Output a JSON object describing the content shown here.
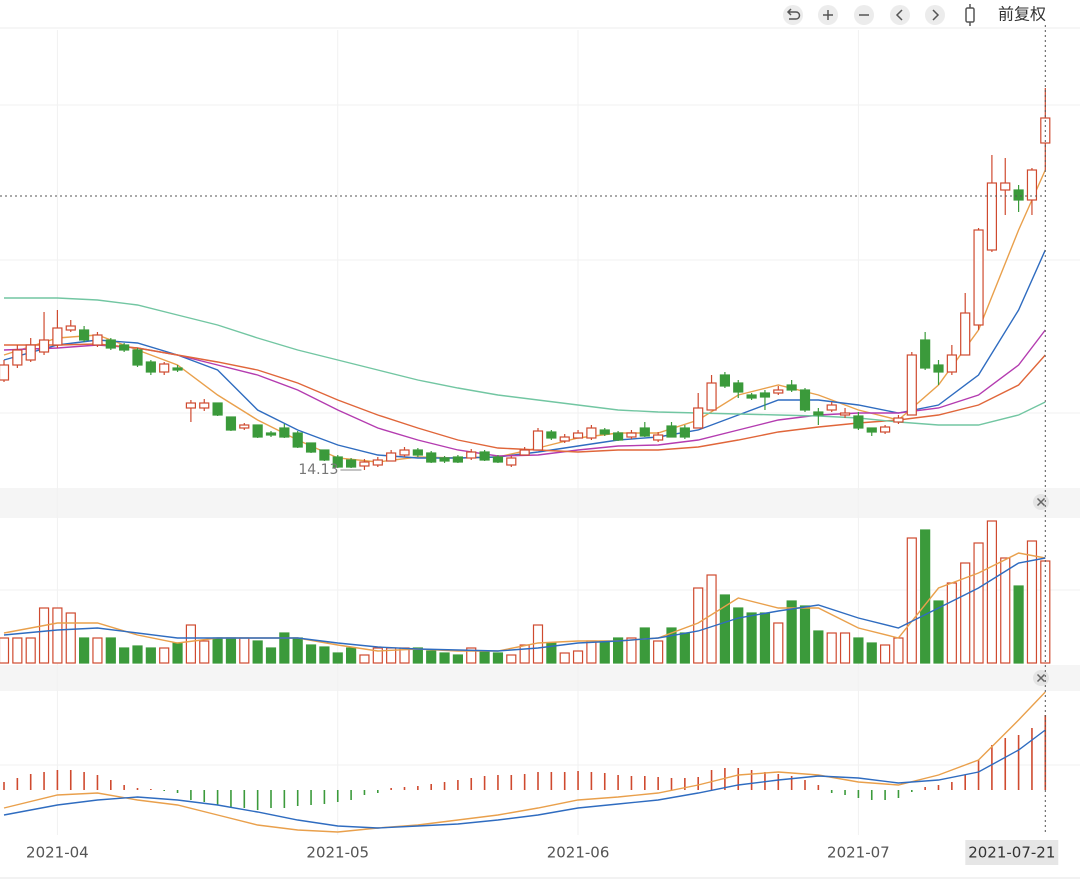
{
  "toolbar": {
    "adjust": "前复权"
  },
  "chart_data": [
    {
      "type": "candlestick",
      "up_color": "#cf4a2f",
      "down_color": "#3b9a3b",
      "ylim": [
        13.83,
        22.93
      ],
      "ohlc": [
        [
          15.93,
          16.33,
          15.89,
          16.23
        ],
        [
          16.23,
          16.63,
          16.17,
          16.53
        ],
        [
          16.33,
          16.77,
          16.29,
          16.63
        ],
        [
          16.49,
          17.29,
          16.43,
          16.73
        ],
        [
          16.63,
          17.33,
          16.57,
          16.97
        ],
        [
          16.93,
          17.13,
          16.89,
          17.01
        ],
        [
          16.93,
          17.01,
          16.69,
          16.73
        ],
        [
          16.63,
          16.89,
          16.59,
          16.83
        ],
        [
          16.73,
          16.77,
          16.53,
          16.57
        ],
        [
          16.63,
          16.67,
          16.49,
          16.53
        ],
        [
          16.53,
          16.57,
          16.19,
          16.23
        ],
        [
          16.29,
          16.33,
          16.03,
          16.09
        ],
        [
          16.09,
          16.29,
          16.03,
          16.25
        ],
        [
          16.17,
          16.23,
          16.09,
          16.13
        ],
        [
          15.37,
          15.53,
          15.09,
          15.47
        ],
        [
          15.37,
          15.55,
          15.31,
          15.47
        ],
        [
          15.47,
          15.47,
          15.21,
          15.23
        ],
        [
          15.19,
          15.19,
          14.91,
          14.93
        ],
        [
          14.97,
          15.07,
          14.93,
          15.03
        ],
        [
          15.03,
          15.03,
          14.77,
          14.79
        ],
        [
          14.87,
          14.91,
          14.79,
          14.83
        ],
        [
          14.97,
          15.05,
          14.77,
          14.79
        ],
        [
          14.87,
          14.91,
          14.57,
          14.59
        ],
        [
          14.67,
          14.67,
          14.47,
          14.49
        ],
        [
          14.53,
          14.53,
          14.31,
          14.33
        ],
        [
          14.39,
          14.43,
          14.17,
          14.19
        ],
        [
          14.33,
          14.37,
          14.17,
          14.19
        ],
        [
          14.21,
          14.35,
          14.13,
          14.29
        ],
        [
          14.23,
          14.39,
          14.19,
          14.33
        ],
        [
          14.31,
          14.53,
          14.31,
          14.47
        ],
        [
          14.43,
          14.59,
          14.39,
          14.53
        ],
        [
          14.53,
          14.57,
          14.39,
          14.43
        ],
        [
          14.47,
          14.51,
          14.27,
          14.29
        ],
        [
          14.37,
          14.41,
          14.27,
          14.31
        ],
        [
          14.39,
          14.43,
          14.27,
          14.29
        ],
        [
          14.37,
          14.55,
          14.33,
          14.49
        ],
        [
          14.49,
          14.53,
          14.31,
          14.33
        ],
        [
          14.39,
          14.43,
          14.27,
          14.29
        ],
        [
          14.23,
          14.41,
          14.19,
          14.37
        ],
        [
          14.43,
          14.59,
          14.43,
          14.53
        ],
        [
          14.53,
          14.97,
          14.53,
          14.91
        ],
        [
          14.89,
          14.93,
          14.73,
          14.77
        ],
        [
          14.71,
          14.85,
          14.67,
          14.79
        ],
        [
          14.77,
          14.93,
          14.77,
          14.87
        ],
        [
          14.77,
          15.03,
          14.73,
          14.97
        ],
        [
          14.93,
          14.97,
          14.81,
          14.85
        ],
        [
          14.87,
          14.91,
          14.71,
          14.73
        ],
        [
          14.79,
          14.93,
          14.75,
          14.87
        ],
        [
          14.97,
          15.09,
          14.79,
          14.81
        ],
        [
          14.73,
          14.89,
          14.69,
          14.83
        ],
        [
          15.01,
          15.09,
          14.79,
          14.79
        ],
        [
          14.97,
          15.03,
          14.75,
          14.79
        ],
        [
          14.97,
          15.67,
          14.97,
          15.37
        ],
        [
          15.33,
          16.03,
          15.33,
          15.87
        ],
        [
          16.03,
          16.09,
          15.77,
          15.81
        ],
        [
          15.87,
          15.93,
          15.57,
          15.69
        ],
        [
          15.63,
          15.67,
          15.53,
          15.57
        ],
        [
          15.67,
          15.73,
          15.33,
          15.59
        ],
        [
          15.67,
          15.81,
          15.63,
          15.73
        ],
        [
          15.83,
          15.93,
          15.69,
          15.73
        ],
        [
          15.73,
          15.77,
          15.29,
          15.33
        ],
        [
          15.29,
          15.37,
          15.03,
          15.23
        ],
        [
          15.33,
          15.49,
          15.29,
          15.43
        ],
        [
          15.23,
          15.37,
          15.17,
          15.27
        ],
        [
          15.21,
          15.29,
          14.93,
          14.97
        ],
        [
          14.97,
          14.97,
          14.81,
          14.89
        ],
        [
          14.89,
          15.03,
          14.85,
          14.99
        ],
        [
          15.09,
          15.23,
          15.05,
          15.17
        ],
        [
          15.23,
          16.49,
          15.23,
          16.43
        ],
        [
          16.73,
          16.89,
          16.13,
          16.17
        ],
        [
          16.23,
          16.33,
          15.83,
          16.09
        ],
        [
          16.09,
          16.63,
          16.03,
          16.43
        ],
        [
          16.43,
          17.67,
          16.43,
          17.27
        ],
        [
          17.03,
          18.97,
          16.93,
          18.93
        ],
        [
          18.53,
          20.43,
          18.49,
          19.87
        ],
        [
          19.73,
          20.37,
          19.23,
          19.87
        ],
        [
          19.73,
          19.83,
          19.29,
          19.53
        ],
        [
          19.53,
          20.17,
          19.23,
          20.13
        ],
        [
          20.67,
          21.77,
          20.13,
          21.17
        ]
      ],
      "lines": {
        "x": [
          0,
          4,
          7,
          10,
          13,
          16,
          19,
          22,
          25,
          28,
          31,
          34,
          37,
          40,
          43,
          46,
          49,
          52,
          55,
          58,
          61,
          64,
          67,
          70,
          73,
          76,
          78
        ],
        "series": [
          {
            "color": "#e9a04c",
            "values": [
              16.43,
              16.77,
              16.83,
              16.53,
              16.23,
              15.63,
              15.13,
              14.73,
              14.37,
              14.29,
              14.39,
              14.37,
              14.39,
              14.57,
              14.77,
              14.87,
              14.87,
              15.13,
              15.63,
              15.83,
              15.63,
              15.33,
              15.13,
              15.83,
              16.93,
              18.93,
              20.13
            ]
          },
          {
            "color": "#2f6cc0",
            "values": [
              16.33,
              16.63,
              16.73,
              16.67,
              16.43,
              16.13,
              15.33,
              14.93,
              14.63,
              14.43,
              14.37,
              14.37,
              14.39,
              14.49,
              14.61,
              14.73,
              14.79,
              14.93,
              15.23,
              15.53,
              15.53,
              15.43,
              15.27,
              15.43,
              16.03,
              17.33,
              18.53
            ]
          },
          {
            "color": "#b43cb0",
            "values": [
              16.53,
              16.57,
              16.63,
              16.57,
              16.43,
              16.23,
              16.03,
              15.73,
              15.33,
              14.97,
              14.73,
              14.53,
              14.41,
              14.43,
              14.53,
              14.61,
              14.63,
              14.73,
              14.93,
              15.13,
              15.23,
              15.27,
              15.27,
              15.37,
              15.63,
              16.23,
              16.93
            ]
          },
          {
            "color": "#e0663a",
            "values": [
              16.63,
              16.63,
              16.65,
              16.57,
              16.43,
              16.29,
              16.13,
              15.87,
              15.53,
              15.23,
              14.97,
              14.73,
              14.57,
              14.53,
              14.49,
              14.53,
              14.53,
              14.59,
              14.73,
              14.89,
              14.99,
              15.07,
              15.13,
              15.23,
              15.43,
              15.83,
              16.43
            ]
          },
          {
            "color": "#72c6a2",
            "values": [
              17.57,
              17.57,
              17.53,
              17.43,
              17.23,
              17.03,
              16.77,
              16.53,
              16.33,
              16.13,
              15.93,
              15.77,
              15.63,
              15.53,
              15.43,
              15.33,
              15.29,
              15.27,
              15.25,
              15.23,
              15.21,
              15.17,
              15.09,
              15.03,
              15.03,
              15.23,
              15.49
            ]
          }
        ]
      }
    },
    {
      "type": "volume",
      "ylim": [
        0,
        145
      ],
      "values": [
        25,
        25,
        25,
        55,
        55,
        50,
        25,
        25,
        25,
        15,
        17,
        15,
        15,
        20,
        38,
        22,
        25,
        25,
        25,
        22,
        15,
        30,
        25,
        18,
        16,
        10,
        15,
        8,
        15,
        15,
        15,
        15,
        12,
        10,
        8,
        15,
        12,
        10,
        8,
        18,
        38,
        20,
        10,
        12,
        22,
        22,
        25,
        25,
        35,
        22,
        35,
        30,
        75,
        88,
        68,
        55,
        50,
        50,
        40,
        62,
        57,
        32,
        30,
        30,
        25,
        20,
        18,
        25,
        125,
        133,
        62,
        80,
        100,
        120,
        142,
        105,
        77,
        122,
        102
      ],
      "lines": {
        "x": [
          0,
          4,
          7,
          10,
          13,
          16,
          19,
          22,
          25,
          28,
          31,
          34,
          37,
          40,
          43,
          46,
          49,
          52,
          55,
          58,
          61,
          64,
          67,
          70,
          73,
          76,
          78
        ],
        "series": [
          {
            "color": "#e9a04c",
            "values": [
              30,
              40,
              40,
              28,
              20,
              25,
              25,
              25,
              18,
              12,
              14,
              12,
              12,
              20,
              22,
              22,
              25,
              40,
              65,
              55,
              55,
              35,
              25,
              75,
              90,
              110,
              105
            ]
          },
          {
            "color": "#2f6cc0",
            "values": [
              28,
              33,
              35,
              30,
              25,
              25,
              25,
              25,
              20,
              16,
              14,
              13,
              12,
              15,
              20,
              22,
              25,
              32,
              45,
              52,
              58,
              45,
              35,
              55,
              75,
              100,
              105
            ]
          }
        ]
      }
    },
    {
      "type": "macd",
      "ylim": [
        -0.45,
        1.15
      ],
      "values": [
        0.08,
        0.12,
        0.16,
        0.18,
        0.2,
        0.2,
        0.18,
        0.15,
        0.1,
        0.05,
        0.02,
        0.01,
        -0.01,
        -0.03,
        -0.1,
        -0.12,
        -0.15,
        -0.17,
        -0.18,
        -0.2,
        -0.18,
        -0.18,
        -0.16,
        -0.15,
        -0.14,
        -0.12,
        -0.1,
        -0.05,
        -0.03,
        0.02,
        0.03,
        0.04,
        0.06,
        0.08,
        0.1,
        0.12,
        0.14,
        0.15,
        0.15,
        0.16,
        0.18,
        0.18,
        0.18,
        0.19,
        0.18,
        0.17,
        0.15,
        0.14,
        0.14,
        0.13,
        0.12,
        0.12,
        0.13,
        0.2,
        0.22,
        0.22,
        0.2,
        0.18,
        0.16,
        0.14,
        0.1,
        0.05,
        -0.03,
        -0.05,
        -0.08,
        -0.1,
        -0.1,
        -0.08,
        -0.02,
        0.03,
        0.05,
        0.08,
        0.15,
        0.3,
        0.45,
        0.52,
        0.55,
        0.62,
        0.75
      ],
      "lines": {
        "x": [
          0,
          4,
          7,
          10,
          13,
          16,
          19,
          22,
          25,
          28,
          31,
          34,
          37,
          40,
          43,
          46,
          49,
          52,
          55,
          58,
          61,
          64,
          67,
          70,
          73,
          76,
          78
        ],
        "series": [
          {
            "color": "#e9a04c",
            "values": [
              -0.18,
              -0.05,
              -0.03,
              -0.1,
              -0.15,
              -0.25,
              -0.35,
              -0.4,
              -0.42,
              -0.38,
              -0.35,
              -0.3,
              -0.25,
              -0.18,
              -0.1,
              -0.07,
              -0.03,
              0.05,
              0.15,
              0.18,
              0.15,
              0.08,
              0.05,
              0.15,
              0.3,
              0.7,
              0.98
            ]
          },
          {
            "color": "#2f6cc0",
            "values": [
              -0.25,
              -0.15,
              -0.1,
              -0.07,
              -0.1,
              -0.15,
              -0.22,
              -0.3,
              -0.36,
              -0.38,
              -0.36,
              -0.34,
              -0.3,
              -0.25,
              -0.18,
              -0.14,
              -0.1,
              -0.03,
              0.05,
              0.1,
              0.14,
              0.12,
              0.07,
              0.1,
              0.18,
              0.4,
              0.6
            ]
          }
        ]
      },
      "xticks": [
        {
          "value": 4,
          "label": "2021-04"
        },
        {
          "value": 25,
          "label": "2021-05"
        },
        {
          "value": 43,
          "label": "2021-06"
        },
        {
          "value": 64,
          "label": "2021-07"
        }
      ],
      "cursor": {
        "value": 78,
        "label": "2021-07-21"
      }
    }
  ]
}
